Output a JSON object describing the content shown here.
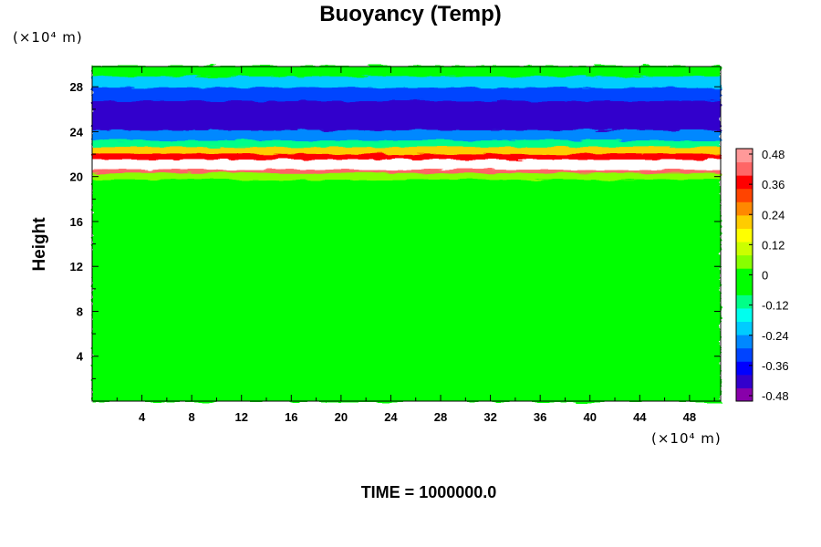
{
  "chart_data": {
    "type": "heatmap",
    "title": "Buoyancy (Temp)",
    "ylabel": "Height",
    "xlabel": "",
    "x_unit": "(×10⁴ m)",
    "y_unit": "(×10⁴ m)",
    "x_ticks": [
      4,
      8,
      12,
      16,
      20,
      24,
      28,
      32,
      36,
      40,
      44,
      48
    ],
    "y_ticks": [
      4,
      8,
      12,
      16,
      20,
      24,
      28
    ],
    "xlim": [
      0,
      50.5
    ],
    "ylim": [
      0,
      29.8
    ],
    "colorbar": {
      "ticks": [
        0.48,
        0.36,
        0.24,
        0.12,
        0,
        -0.12,
        -0.24,
        -0.36,
        -0.48
      ],
      "range": [
        -0.48,
        0.48
      ],
      "colors": [
        "#8800aa",
        "#3300cc",
        "#0000ff",
        "#0044ff",
        "#0088ff",
        "#00ccff",
        "#00ffee",
        "#00ff88",
        "#00ff00",
        "#00ff00",
        "#88ff00",
        "#ccff00",
        "#ffff00",
        "#ffcc00",
        "#ff8800",
        "#ff4400",
        "#ff0000",
        "#ff6666",
        "#ff9999"
      ]
    },
    "bands": [
      {
        "y0": 0,
        "y1": 19.8,
        "value": 0.0
      },
      {
        "y0": 19.8,
        "y1": 20.4,
        "value": 0.05
      },
      {
        "y0": 20.4,
        "y1": 20.7,
        "value": 0.42
      },
      {
        "y0": 20.7,
        "y1": 21.6,
        "value": 0.6
      },
      {
        "y0": 21.6,
        "y1": 22.1,
        "value": 0.36
      },
      {
        "y0": 22.1,
        "y1": 22.7,
        "value": 0.18
      },
      {
        "y0": 22.7,
        "y1": 23.3,
        "value": -0.12
      },
      {
        "y0": 23.3,
        "y1": 24.2,
        "value": -0.26
      },
      {
        "y0": 24.2,
        "y1": 26.8,
        "value": -0.4
      },
      {
        "y0": 26.8,
        "y1": 28.0,
        "value": -0.32
      },
      {
        "y0": 28.0,
        "y1": 29.0,
        "value": -0.18
      },
      {
        "y0": 29.0,
        "y1": 29.8,
        "value": -0.06
      }
    ]
  },
  "footer": {
    "time_label": "TIME = 1000000.0"
  }
}
